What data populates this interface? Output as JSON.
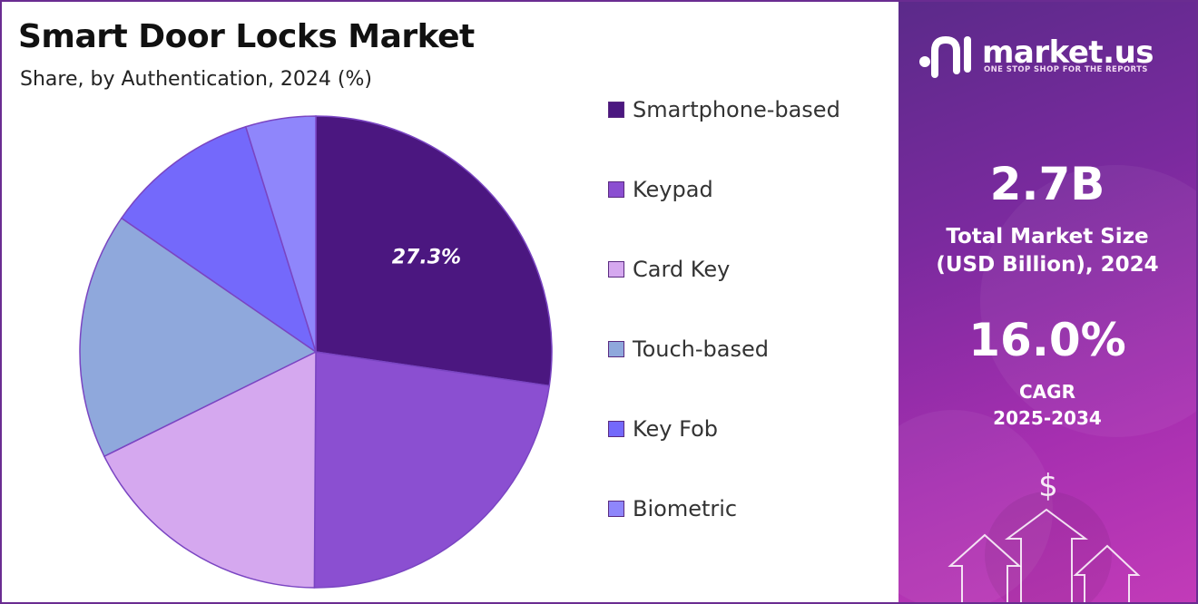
{
  "title": "Smart Door Locks Market",
  "subtitle": "Share, by Authentication, 2024 (%)",
  "chart_data": {
    "type": "pie",
    "title": "Smart Door Locks Market",
    "subtitle": "Share, by Authentication, 2024 (%)",
    "start_angle_deg": 0,
    "direction": "clockwise",
    "legend_position": "right",
    "slices": [
      {
        "label": "Smartphone-based",
        "value": 27.3,
        "color": "#4b1780",
        "show_label": true
      },
      {
        "label": "Keypad",
        "value": 22.8,
        "color": "#8b4fd1",
        "show_label": false
      },
      {
        "label": "Card Key",
        "value": 17.6,
        "color": "#d5a8ef",
        "show_label": false
      },
      {
        "label": "Touch-based",
        "value": 16.9,
        "color": "#8fa8dc",
        "show_label": false
      },
      {
        "label": "Key Fob",
        "value": 10.6,
        "color": "#7469fb",
        "show_label": false
      },
      {
        "label": "Biometric",
        "value": 4.8,
        "color": "#8f86fb",
        "show_label": false
      }
    ],
    "data_label": "27.3%"
  },
  "legend": [
    {
      "label": "Smartphone-based",
      "color": "#4b1780"
    },
    {
      "label": "Keypad",
      "color": "#8b4fd1"
    },
    {
      "label": "Card Key",
      "color": "#d5a8ef"
    },
    {
      "label": "Touch-based",
      "color": "#8fa8dc"
    },
    {
      "label": "Key Fob",
      "color": "#7469fb"
    },
    {
      "label": "Biometric",
      "color": "#8f86fb"
    }
  ],
  "brand": {
    "name": "market.us",
    "tagline": "ONE STOP SHOP FOR THE REPORTS",
    "logo_icon": "market-us-logo-icon"
  },
  "stats": {
    "market_size_value": "2.7B",
    "market_size_label_line1": "Total Market Size",
    "market_size_label_line2": "(USD Billion), 2024",
    "cagr_value": "16.0%",
    "cagr_label_line1": "CAGR",
    "cagr_label_line2": "2025-2034"
  },
  "decor": {
    "dollar_symbol": "$",
    "icons": [
      "dollar-icon",
      "up-arrow-icon"
    ]
  },
  "colors": {
    "border": "#6a2c91",
    "panel_start": "#5b2a8a",
    "panel_end": "#c23bb8"
  }
}
